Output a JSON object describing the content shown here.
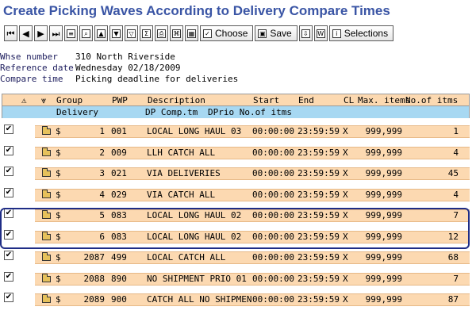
{
  "title": "Create Picking Waves According to Delivery Compare Times",
  "toolbar": {
    "choose_label": "Choose",
    "save_label": "Save",
    "selections_label": "Selections"
  },
  "info": {
    "warehouse_label": "Whse number",
    "warehouse_value": "310 North Riverside",
    "refdate_label": "Reference date",
    "refdate_value": "Wednesday 02/18/2009",
    "compare_label": "Compare time",
    "compare_value": "Picking deadline for deliveries"
  },
  "columns": {
    "group": "Group",
    "pwp": "PWP",
    "description": "Description",
    "start": "Start",
    "end": "End",
    "cl": "CL",
    "max_items": "Max. items",
    "no_items": "No.of itms",
    "delivery": "Delivery",
    "dp_comp": "DP Comp.tm",
    "dprio": "DPrio No.of itms"
  },
  "rows": [
    {
      "currency": "$",
      "group": "1",
      "pwp": "001",
      "description": "LOCAL LONG HAUL 03",
      "start": "00:00:00",
      "end": "23:59:59",
      "cl": "X",
      "max_items": "999,999",
      "no_items": "1"
    },
    {
      "currency": "$",
      "group": "2",
      "pwp": "009",
      "description": "LLH CATCH ALL",
      "start": "00:00:00",
      "end": "23:59:59",
      "cl": "X",
      "max_items": "999,999",
      "no_items": "4"
    },
    {
      "currency": "$",
      "group": "3",
      "pwp": "021",
      "description": "VIA DELIVERIES",
      "start": "00:00:00",
      "end": "23:59:59",
      "cl": "X",
      "max_items": "999,999",
      "no_items": "45"
    },
    {
      "currency": "$",
      "group": "4",
      "pwp": "029",
      "description": "VIA CATCH ALL",
      "start": "00:00:00",
      "end": "23:59:59",
      "cl": "X",
      "max_items": "999,999",
      "no_items": "4"
    },
    {
      "currency": "$",
      "group": "5",
      "pwp": "083",
      "description": "LOCAL LONG HAUL 02",
      "start": "00:00:00",
      "end": "23:59:59",
      "cl": "X",
      "max_items": "999,999",
      "no_items": "7"
    },
    {
      "currency": "$",
      "group": "6",
      "pwp": "083",
      "description": "LOCAL LONG HAUL 02",
      "start": "00:00:00",
      "end": "23:59:59",
      "cl": "X",
      "max_items": "999,999",
      "no_items": "12"
    },
    {
      "currency": "$",
      "group": "2087",
      "pwp": "499",
      "description": "LOCAL CATCH ALL",
      "start": "00:00:00",
      "end": "23:59:59",
      "cl": "X",
      "max_items": "999,999",
      "no_items": "68"
    },
    {
      "currency": "$",
      "group": "2088",
      "pwp": "890",
      "description": "NO SHIPMENT PRIO 01",
      "start": "00:00:00",
      "end": "23:59:59",
      "cl": "X",
      "max_items": "999,999",
      "no_items": "7"
    },
    {
      "currency": "$",
      "group": "2089",
      "pwp": "900",
      "description": "CATCH ALL NO SHIPMEN",
      "start": "00:00:00",
      "end": "23:59:59",
      "cl": "X",
      "max_items": "999,999",
      "no_items": "87"
    }
  ],
  "colors": {
    "title": "#3a55a5",
    "row_fill": "#fcd9b1",
    "subheader_fill": "#a7d8f2",
    "highlight_border": "#1f2d86"
  }
}
